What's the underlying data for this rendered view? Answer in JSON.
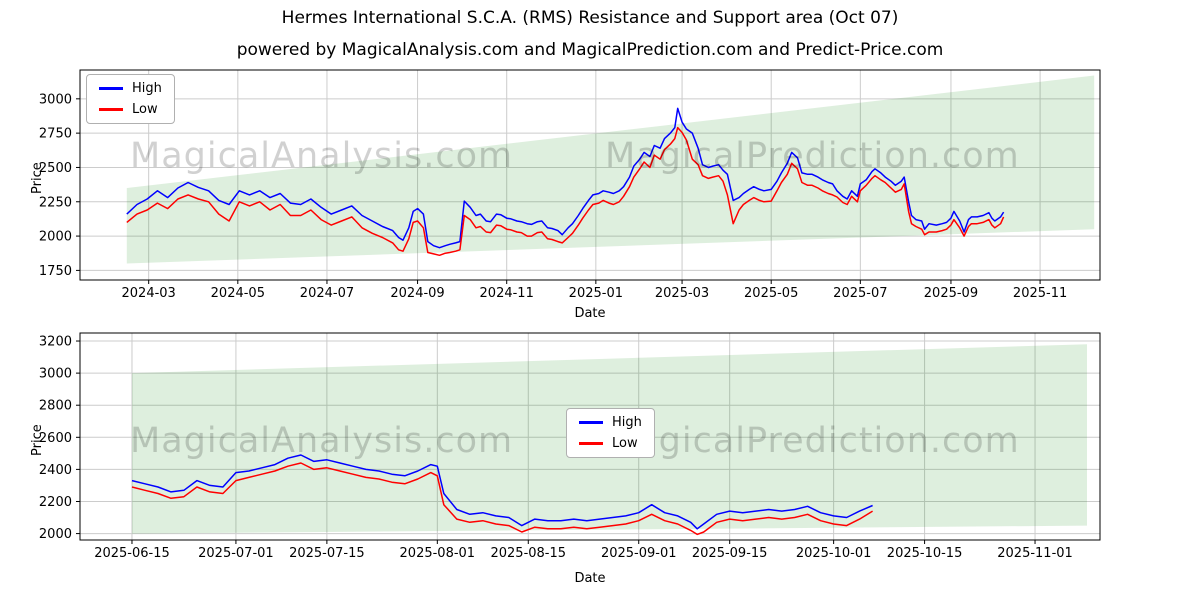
{
  "figure": {
    "title": "Hermes International S.C.A. (RMS) Resistance and Support area (Oct 07)",
    "subtitle": "powered by MagicalAnalysis.com and MagicalPrediction.com and Predict-Price.com",
    "watermarks": [
      "MagicalAnalysis.com",
      "MagicalPrediction.com"
    ],
    "colors": {
      "high_line": "#0000ff",
      "low_line": "#ff0000",
      "band": "rgba(0,128,0,0.13)",
      "grid": "#cccccc",
      "spine": "#000000",
      "watermark": "rgba(0,0,0,0.18)"
    }
  },
  "chart_data": [
    {
      "type": "line",
      "title": "",
      "xlabel": "Date",
      "ylabel": "Price",
      "legend_loc": "upper left",
      "grid": true,
      "x_encoding": "days since 2024-01-01",
      "xlim": [
        13,
        711
      ],
      "ylim": [
        1680,
        3210
      ],
      "xticks": [
        [
          60,
          "2024-03"
        ],
        [
          121,
          "2024-05"
        ],
        [
          182,
          "2024-07"
        ],
        [
          244,
          "2024-09"
        ],
        [
          305,
          "2024-11"
        ],
        [
          366,
          "2025-01"
        ],
        [
          425,
          "2025-03"
        ],
        [
          486,
          "2025-05"
        ],
        [
          547,
          "2025-07"
        ],
        [
          609,
          "2025-09"
        ],
        [
          670,
          "2025-11"
        ]
      ],
      "yticks": [
        1750,
        2000,
        2250,
        2500,
        2750,
        3000
      ],
      "band": [
        [
          45,
          2350
        ],
        [
          707,
          3170
        ],
        [
          707,
          2050
        ],
        [
          45,
          1800
        ]
      ],
      "series": [
        {
          "name": "High",
          "color": "#0000ff"
        },
        {
          "name": "Low",
          "color": "#ff0000"
        }
      ],
      "rows": [
        [
          45,
          2160,
          2100
        ],
        [
          52,
          2230,
          2160
        ],
        [
          59,
          2270,
          2190
        ],
        [
          66,
          2330,
          2240
        ],
        [
          73,
          2280,
          2200
        ],
        [
          80,
          2350,
          2270
        ],
        [
          87,
          2390,
          2300
        ],
        [
          94,
          2355,
          2270
        ],
        [
          101,
          2330,
          2250
        ],
        [
          108,
          2260,
          2160
        ],
        [
          115,
          2230,
          2110
        ],
        [
          122,
          2330,
          2250
        ],
        [
          129,
          2300,
          2220
        ],
        [
          136,
          2330,
          2250
        ],
        [
          143,
          2280,
          2190
        ],
        [
          150,
          2310,
          2230
        ],
        [
          157,
          2240,
          2150
        ],
        [
          164,
          2230,
          2150
        ],
        [
          171,
          2270,
          2190
        ],
        [
          178,
          2210,
          2120
        ],
        [
          185,
          2160,
          2080
        ],
        [
          192,
          2190,
          2110
        ],
        [
          199,
          2220,
          2140
        ],
        [
          206,
          2150,
          2060
        ],
        [
          213,
          2110,
          2020
        ],
        [
          220,
          2070,
          1990
        ],
        [
          227,
          2040,
          1950
        ],
        [
          231,
          1990,
          1900
        ],
        [
          234,
          1970,
          1890
        ],
        [
          238,
          2060,
          1980
        ],
        [
          241,
          2180,
          2100
        ],
        [
          244,
          2200,
          2110
        ],
        [
          248,
          2160,
          2060
        ],
        [
          251,
          1960,
          1880
        ],
        [
          255,
          1930,
          1870
        ],
        [
          259,
          1915,
          1860
        ],
        [
          263,
          1930,
          1875
        ],
        [
          266,
          1940,
          1880
        ],
        [
          270,
          1950,
          1890
        ],
        [
          273,
          1960,
          1900
        ],
        [
          276,
          2255,
          2150
        ],
        [
          280,
          2210,
          2120
        ],
        [
          284,
          2150,
          2060
        ],
        [
          287,
          2160,
          2070
        ],
        [
          291,
          2110,
          2030
        ],
        [
          294,
          2105,
          2025
        ],
        [
          298,
          2160,
          2080
        ],
        [
          301,
          2155,
          2075
        ],
        [
          305,
          2130,
          2050
        ],
        [
          308,
          2125,
          2045
        ],
        [
          312,
          2110,
          2030
        ],
        [
          315,
          2105,
          2025
        ],
        [
          319,
          2090,
          2000
        ],
        [
          322,
          2085,
          2000
        ],
        [
          326,
          2105,
          2025
        ],
        [
          329,
          2110,
          2030
        ],
        [
          333,
          2060,
          1980
        ],
        [
          336,
          2055,
          1975
        ],
        [
          340,
          2040,
          1960
        ],
        [
          343,
          2010,
          1950
        ],
        [
          347,
          2060,
          1990
        ],
        [
          350,
          2090,
          2020
        ],
        [
          354,
          2150,
          2080
        ],
        [
          357,
          2200,
          2130
        ],
        [
          361,
          2260,
          2190
        ],
        [
          364,
          2300,
          2230
        ],
        [
          368,
          2310,
          2240
        ],
        [
          371,
          2330,
          2260
        ],
        [
          375,
          2320,
          2240
        ],
        [
          378,
          2310,
          2230
        ],
        [
          382,
          2330,
          2250
        ],
        [
          385,
          2360,
          2290
        ],
        [
          389,
          2430,
          2360
        ],
        [
          392,
          2510,
          2430
        ],
        [
          396,
          2560,
          2490
        ],
        [
          399,
          2610,
          2540
        ],
        [
          403,
          2580,
          2500
        ],
        [
          406,
          2660,
          2590
        ],
        [
          410,
          2640,
          2560
        ],
        [
          413,
          2710,
          2630
        ],
        [
          417,
          2750,
          2670
        ],
        [
          420,
          2790,
          2710
        ],
        [
          422,
          2930,
          2790
        ],
        [
          425,
          2830,
          2755
        ],
        [
          428,
          2780,
          2700
        ],
        [
          432,
          2750,
          2560
        ],
        [
          436,
          2640,
          2520
        ],
        [
          439,
          2520,
          2440
        ],
        [
          443,
          2500,
          2420
        ],
        [
          446,
          2510,
          2430
        ],
        [
          450,
          2520,
          2440
        ],
        [
          453,
          2480,
          2400
        ],
        [
          456,
          2450,
          2300
        ],
        [
          460,
          2260,
          2090
        ],
        [
          464,
          2280,
          2190
        ],
        [
          467,
          2310,
          2230
        ],
        [
          471,
          2340,
          2260
        ],
        [
          474,
          2360,
          2280
        ],
        [
          478,
          2340,
          2260
        ],
        [
          481,
          2330,
          2250
        ],
        [
          486,
          2340,
          2255
        ],
        [
          490,
          2400,
          2330
        ],
        [
          493,
          2460,
          2390
        ],
        [
          497,
          2530,
          2450
        ],
        [
          500,
          2610,
          2530
        ],
        [
          504,
          2570,
          2490
        ],
        [
          507,
          2460,
          2390
        ],
        [
          511,
          2450,
          2370
        ],
        [
          514,
          2450,
          2370
        ],
        [
          518,
          2430,
          2350
        ],
        [
          521,
          2410,
          2330
        ],
        [
          525,
          2390,
          2310
        ],
        [
          528,
          2380,
          2300
        ],
        [
          531,
          2330,
          2285
        ],
        [
          535,
          2290,
          2245
        ],
        [
          538,
          2270,
          2230
        ],
        [
          541,
          2330,
          2290
        ],
        [
          545,
          2290,
          2250
        ],
        [
          547,
          2380,
          2330
        ],
        [
          551,
          2410,
          2370
        ],
        [
          555,
          2470,
          2420
        ],
        [
          557,
          2490,
          2440
        ],
        [
          561,
          2460,
          2410
        ],
        [
          564,
          2430,
          2390
        ],
        [
          568,
          2400,
          2350
        ],
        [
          571,
          2370,
          2320
        ],
        [
          575,
          2400,
          2340
        ],
        [
          577,
          2430,
          2380
        ],
        [
          580,
          2250,
          2180
        ],
        [
          582,
          2150,
          2090
        ],
        [
          585,
          2120,
          2070
        ],
        [
          589,
          2110,
          2050
        ],
        [
          591,
          2050,
          2010
        ],
        [
          594,
          2090,
          2030
        ],
        [
          599,
          2080,
          2030
        ],
        [
          603,
          2090,
          2040
        ],
        [
          606,
          2100,
          2050
        ],
        [
          609,
          2130,
          2080
        ],
        [
          611,
          2180,
          2120
        ],
        [
          615,
          2110,
          2060
        ],
        [
          618,
          2030,
          2000
        ],
        [
          621,
          2120,
          2070
        ],
        [
          623,
          2140,
          2090
        ],
        [
          627,
          2140,
          2090
        ],
        [
          631,
          2150,
          2100
        ],
        [
          635,
          2170,
          2120
        ],
        [
          637,
          2130,
          2080
        ],
        [
          639,
          2110,
          2060
        ],
        [
          643,
          2140,
          2090
        ],
        [
          645,
          2175,
          2140
        ]
      ]
    },
    {
      "type": "line",
      "title": "",
      "xlabel": "Date",
      "ylabel": "Price",
      "legend_loc": "center",
      "grid": true,
      "x_encoding": "day of year 2025",
      "xlim": [
        158,
        315
      ],
      "ylim": [
        1960,
        3250
      ],
      "xticks": [
        [
          166,
          "2025-06-15"
        ],
        [
          182,
          "2025-07-01"
        ],
        [
          196,
          "2025-07-15"
        ],
        [
          213,
          "2025-08-01"
        ],
        [
          227,
          "2025-08-15"
        ],
        [
          244,
          "2025-09-01"
        ],
        [
          258,
          "2025-09-15"
        ],
        [
          274,
          "2025-10-01"
        ],
        [
          288,
          "2025-10-15"
        ],
        [
          305,
          "2025-11-01"
        ]
      ],
      "yticks": [
        2000,
        2200,
        2400,
        2600,
        2800,
        3000,
        3200
      ],
      "band": [
        [
          166,
          3000
        ],
        [
          313,
          3180
        ],
        [
          313,
          2050
        ],
        [
          166,
          2000
        ]
      ],
      "series": [
        {
          "name": "High",
          "color": "#0000ff"
        },
        {
          "name": "Low",
          "color": "#ff0000"
        }
      ],
      "rows": [
        [
          166,
          2330,
          2290
        ],
        [
          168,
          2310,
          2270
        ],
        [
          170,
          2290,
          2250
        ],
        [
          172,
          2260,
          2220
        ],
        [
          174,
          2270,
          2230
        ],
        [
          176,
          2330,
          2290
        ],
        [
          178,
          2300,
          2260
        ],
        [
          180,
          2290,
          2250
        ],
        [
          182,
          2380,
          2330
        ],
        [
          184,
          2390,
          2350
        ],
        [
          186,
          2410,
          2370
        ],
        [
          188,
          2430,
          2390
        ],
        [
          190,
          2470,
          2420
        ],
        [
          192,
          2490,
          2440
        ],
        [
          194,
          2450,
          2400
        ],
        [
          196,
          2460,
          2410
        ],
        [
          198,
          2440,
          2390
        ],
        [
          200,
          2420,
          2370
        ],
        [
          202,
          2400,
          2350
        ],
        [
          204,
          2390,
          2340
        ],
        [
          206,
          2370,
          2320
        ],
        [
          208,
          2360,
          2310
        ],
        [
          210,
          2390,
          2340
        ],
        [
          212,
          2430,
          2380
        ],
        [
          213,
          2420,
          2360
        ],
        [
          214,
          2250,
          2180
        ],
        [
          216,
          2150,
          2090
        ],
        [
          218,
          2120,
          2070
        ],
        [
          220,
          2130,
          2080
        ],
        [
          222,
          2110,
          2060
        ],
        [
          224,
          2100,
          2050
        ],
        [
          226,
          2050,
          2010
        ],
        [
          228,
          2090,
          2040
        ],
        [
          230,
          2080,
          2030
        ],
        [
          232,
          2080,
          2030
        ],
        [
          234,
          2090,
          2040
        ],
        [
          236,
          2080,
          2030
        ],
        [
          238,
          2090,
          2040
        ],
        [
          240,
          2100,
          2050
        ],
        [
          242,
          2110,
          2060
        ],
        [
          244,
          2130,
          2080
        ],
        [
          246,
          2180,
          2120
        ],
        [
          248,
          2130,
          2080
        ],
        [
          250,
          2110,
          2060
        ],
        [
          252,
          2070,
          2020
        ],
        [
          253,
          2030,
          1995
        ],
        [
          254,
          2060,
          2010
        ],
        [
          256,
          2120,
          2070
        ],
        [
          258,
          2140,
          2090
        ],
        [
          260,
          2130,
          2080
        ],
        [
          262,
          2140,
          2090
        ],
        [
          264,
          2150,
          2100
        ],
        [
          266,
          2140,
          2090
        ],
        [
          268,
          2150,
          2100
        ],
        [
          270,
          2170,
          2120
        ],
        [
          272,
          2130,
          2080
        ],
        [
          274,
          2110,
          2060
        ],
        [
          276,
          2100,
          2050
        ],
        [
          278,
          2140,
          2090
        ],
        [
          280,
          2175,
          2140
        ]
      ]
    }
  ]
}
